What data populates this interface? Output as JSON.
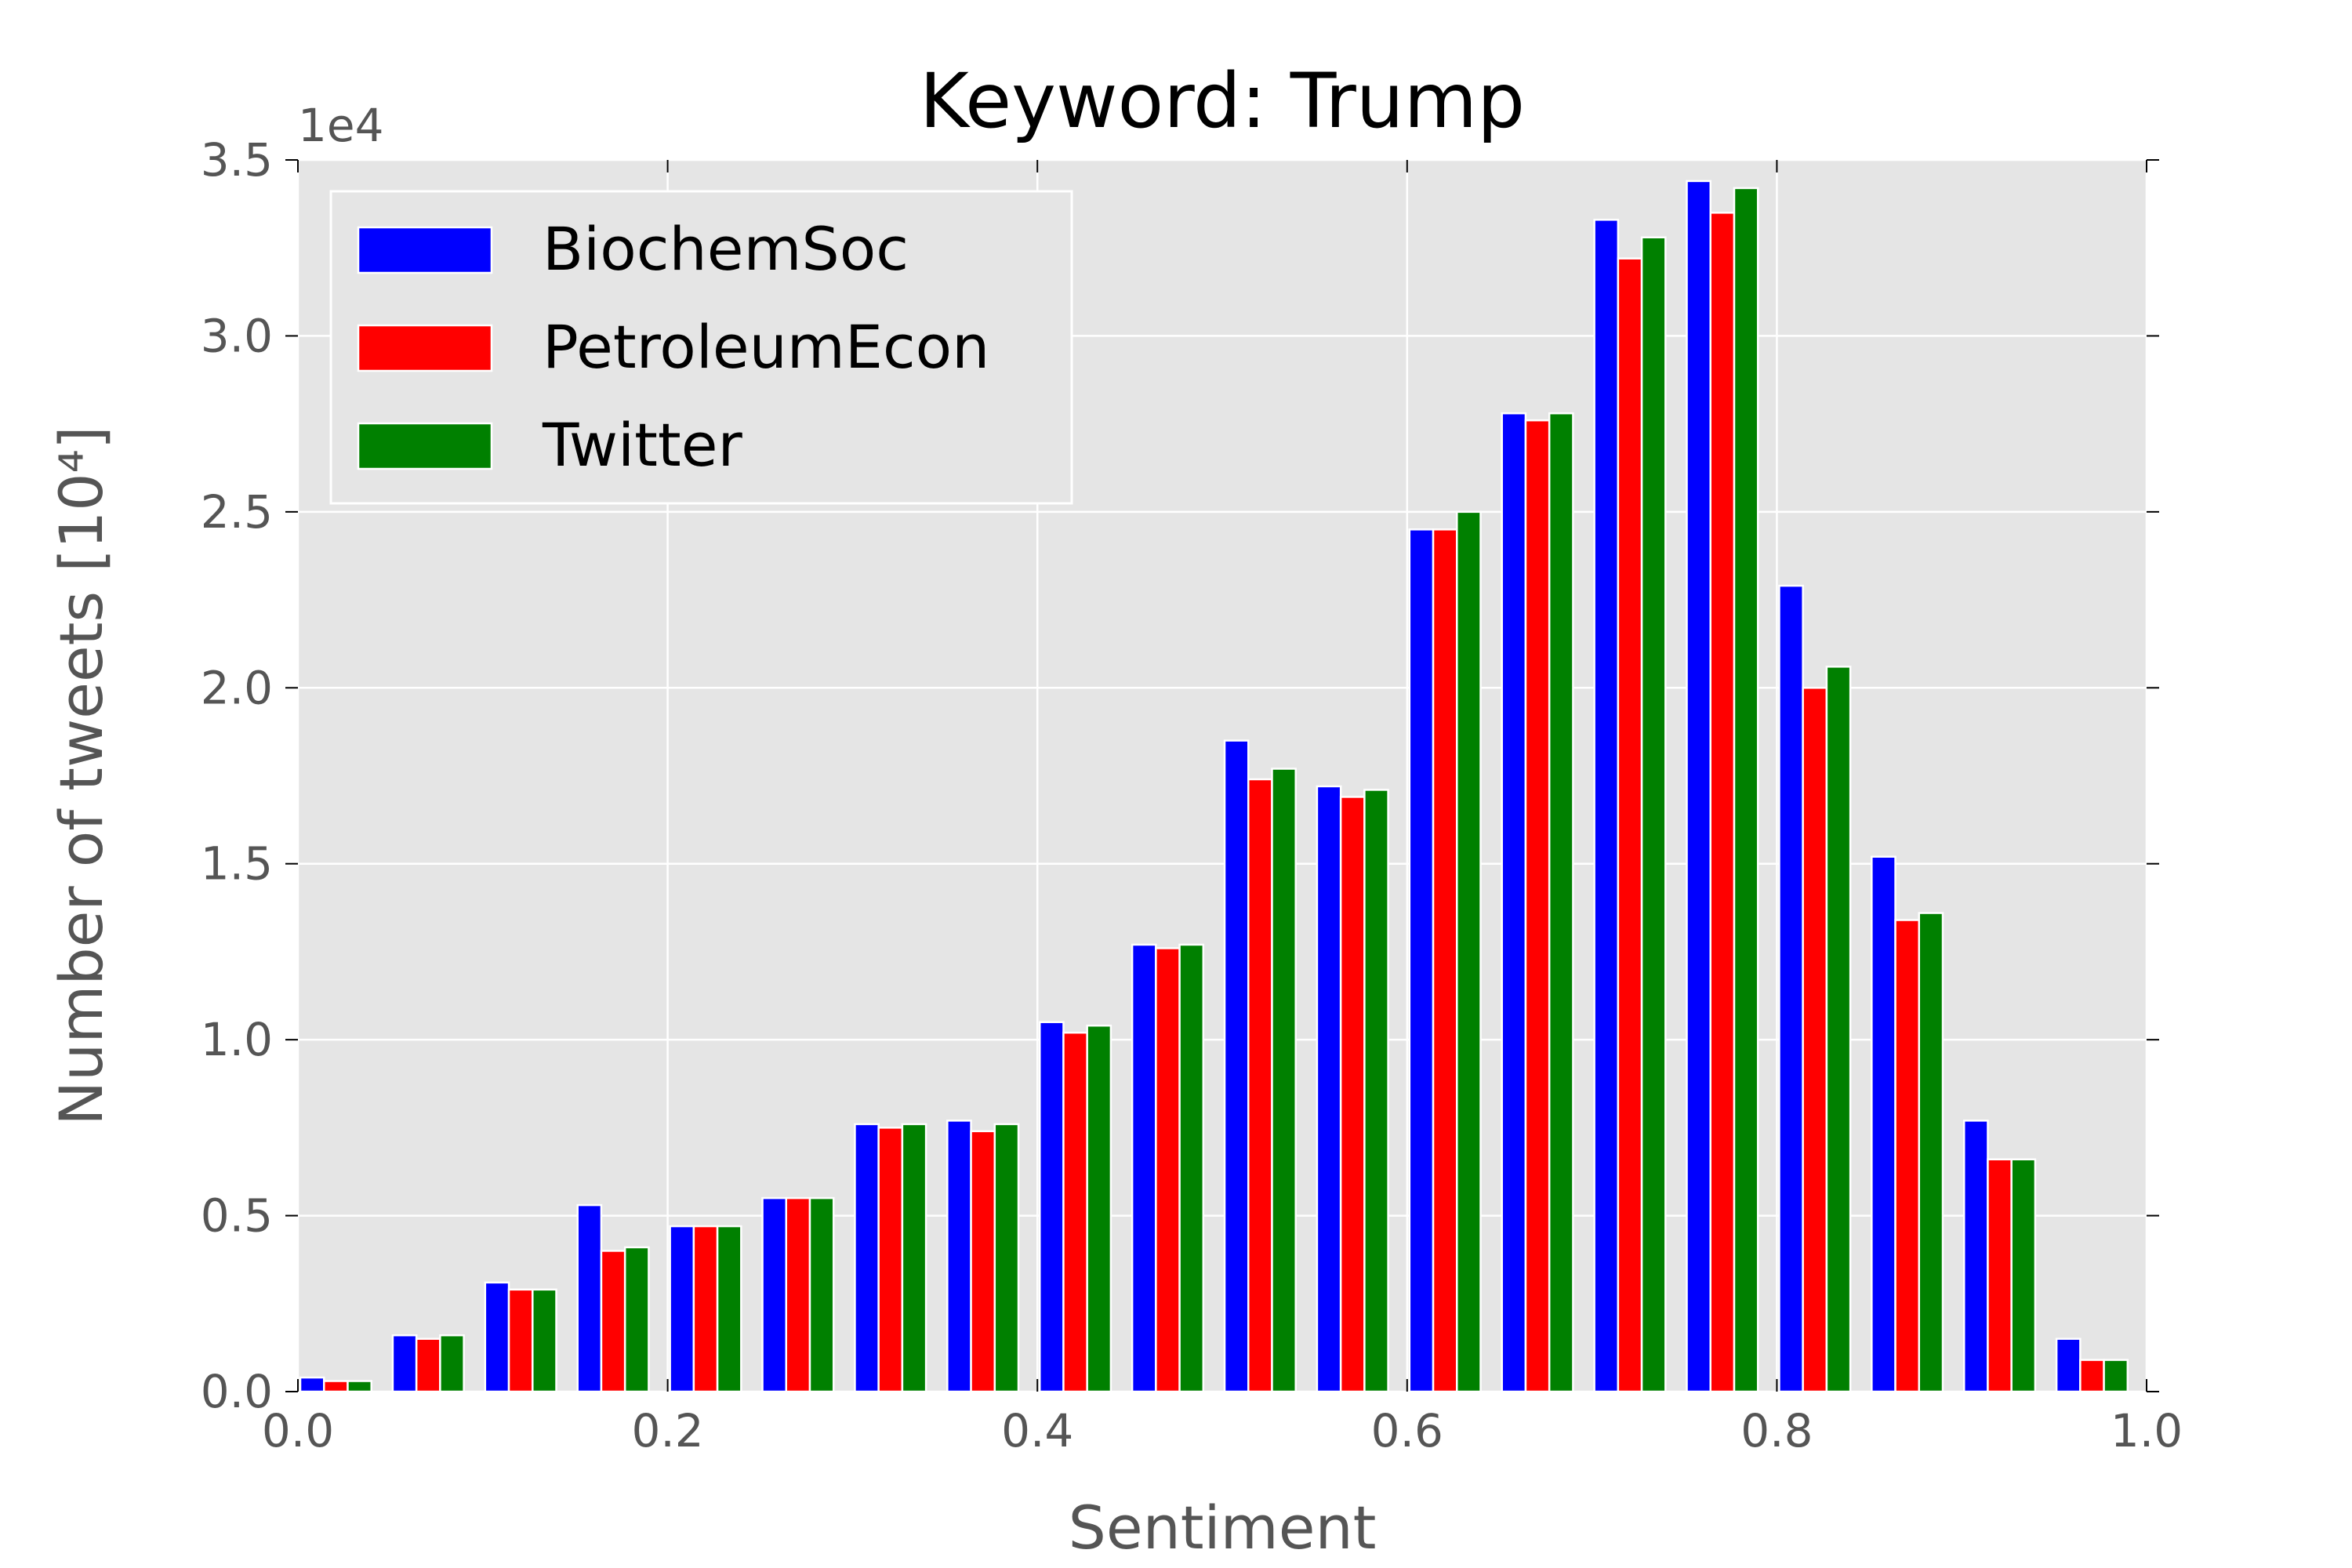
{
  "chart_data": {
    "type": "bar",
    "title": "Keyword: Trump",
    "xlabel": "Sentiment",
    "ylabel": "Number of tweets [10⁴]",
    "y_offset_label": "1e4",
    "xlim": [
      0.0,
      1.0
    ],
    "ylim": [
      0.0,
      3.5
    ],
    "x_ticks": [
      "0.0",
      "0.2",
      "0.4",
      "0.6",
      "0.8",
      "1.0"
    ],
    "y_ticks": [
      "0.0",
      "0.5",
      "1.0",
      "1.5",
      "2.0",
      "2.5",
      "3.0",
      "3.5"
    ],
    "bin_width": 0.05,
    "bin_starts": [
      0.0,
      0.05,
      0.1,
      0.15,
      0.2,
      0.25,
      0.3,
      0.35,
      0.4,
      0.45,
      0.5,
      0.55,
      0.6,
      0.65,
      0.7,
      0.75,
      0.8,
      0.85,
      0.9,
      0.95
    ],
    "grid": true,
    "legend_position": "top-left",
    "series": [
      {
        "name": "BiochemSoc",
        "color": "#0000ff",
        "values": [
          0.04,
          0.16,
          0.31,
          0.53,
          0.47,
          0.55,
          0.76,
          0.77,
          1.05,
          1.27,
          1.85,
          1.72,
          2.45,
          2.78,
          3.33,
          3.44,
          2.29,
          1.52,
          0.77,
          0.15
        ]
      },
      {
        "name": "PetroleumEcon",
        "color": "#ff0000",
        "values": [
          0.03,
          0.15,
          0.29,
          0.4,
          0.47,
          0.55,
          0.75,
          0.74,
          1.02,
          1.26,
          1.74,
          1.69,
          2.45,
          2.76,
          3.22,
          3.35,
          2.0,
          1.34,
          0.66,
          0.09
        ]
      },
      {
        "name": "Twitter",
        "color": "#008000",
        "values": [
          0.03,
          0.16,
          0.29,
          0.41,
          0.47,
          0.55,
          0.76,
          0.76,
          1.04,
          1.27,
          1.77,
          1.71,
          2.5,
          2.78,
          3.28,
          3.42,
          2.06,
          1.36,
          0.66,
          0.09
        ]
      }
    ]
  }
}
